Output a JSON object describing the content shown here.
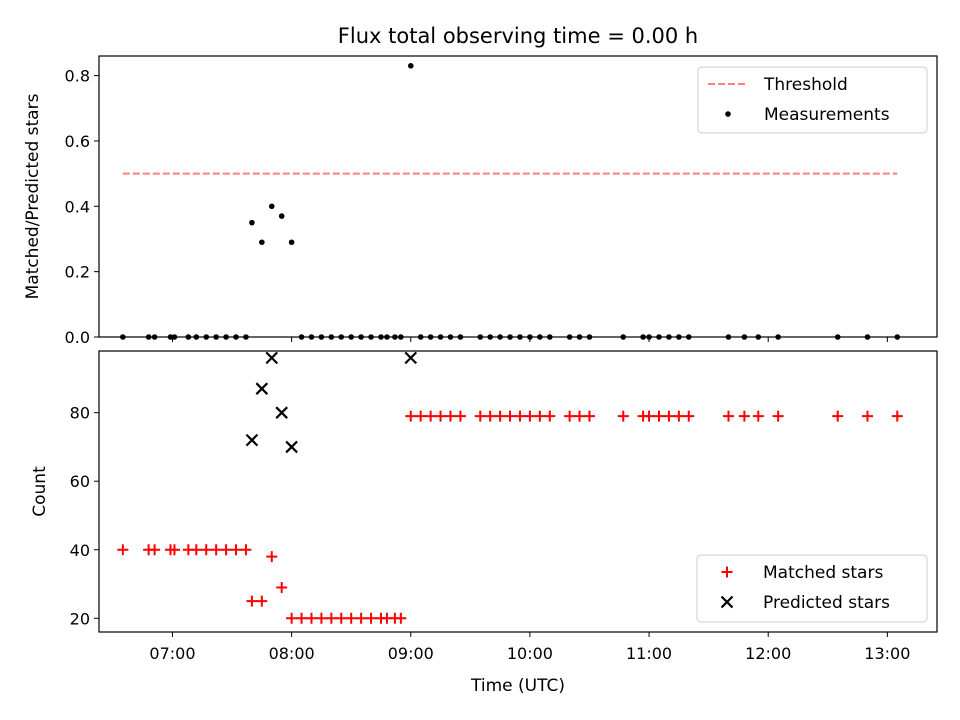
{
  "figure": {
    "title": "Flux total observing time = 0.00 h",
    "xlabel": "Time (UTC)"
  },
  "chart_data": [
    {
      "type": "scatter",
      "ylabel": "Matched/Predicted stars",
      "xlim": [
        "06:23",
        "13:25"
      ],
      "ylim": [
        0,
        0.86
      ],
      "yticks": [
        "0.0",
        "0.2",
        "0.4",
        "0.6",
        "0.8"
      ],
      "xticks": [
        "07:00",
        "08:00",
        "09:00",
        "10:00",
        "11:00",
        "12:00",
        "13:00"
      ],
      "legend_position": "top-right",
      "colors": {
        "threshold": "#ff7f7f",
        "measurements": "#000000"
      },
      "series": [
        {
          "name": "Threshold",
          "kind": "dashed-line",
          "x": [
            "06:35",
            "13:05"
          ],
          "y": [
            0.5,
            0.5
          ]
        },
        {
          "name": "Measurements",
          "kind": "points",
          "x": [
            "06:35",
            "06:48",
            "06:51",
            "06:59",
            "07:01",
            "07:08",
            "07:12",
            "07:17",
            "07:22",
            "07:27",
            "07:32",
            "07:37",
            "07:40",
            "07:45",
            "07:50",
            "07:55",
            "08:00",
            "08:05",
            "08:10",
            "08:15",
            "08:20",
            "08:25",
            "08:30",
            "08:35",
            "08:40",
            "08:45",
            "08:48",
            "08:52",
            "08:55",
            "09:00",
            "09:05",
            "09:10",
            "09:15",
            "09:20",
            "09:25",
            "09:35",
            "09:40",
            "09:45",
            "09:50",
            "09:55",
            "10:00",
            "10:05",
            "10:10",
            "10:20",
            "10:25",
            "10:30",
            "10:47",
            "10:57",
            "11:00",
            "11:05",
            "11:10",
            "11:15",
            "11:20",
            "11:40",
            "11:48",
            "11:55",
            "12:05",
            "12:35",
            "12:50",
            "13:05"
          ],
          "y": [
            0,
            0,
            0,
            0,
            0,
            0,
            0,
            0,
            0,
            0,
            0,
            0,
            0.35,
            0.29,
            0.4,
            0.37,
            0.29,
            0,
            0,
            0,
            0,
            0,
            0,
            0,
            0,
            0,
            0,
            0,
            0,
            0.83,
            0,
            0,
            0,
            0,
            0,
            0,
            0,
            0,
            0,
            0,
            0,
            0,
            0,
            0,
            0,
            0,
            0,
            0,
            0,
            0,
            0,
            0,
            0,
            0,
            0,
            0,
            0,
            0,
            0,
            0
          ]
        }
      ]
    },
    {
      "type": "scatter",
      "ylabel": "Count",
      "xlim": [
        "06:23",
        "13:25"
      ],
      "ylim": [
        16,
        98
      ],
      "yticks": [
        "20",
        "40",
        "60",
        "80"
      ],
      "xticks": [
        "07:00",
        "08:00",
        "09:00",
        "10:00",
        "11:00",
        "12:00",
        "13:00"
      ],
      "legend_position": "bottom-right",
      "colors": {
        "matched": "#ff0000",
        "predicted": "#000000"
      },
      "series": [
        {
          "name": "Matched stars",
          "marker": "plus",
          "x": [
            "06:35",
            "06:48",
            "06:51",
            "06:59",
            "07:01",
            "07:08",
            "07:12",
            "07:17",
            "07:22",
            "07:27",
            "07:32",
            "07:37",
            "07:40",
            "07:45",
            "07:50",
            "07:55",
            "08:00",
            "08:05",
            "08:10",
            "08:15",
            "08:20",
            "08:25",
            "08:30",
            "08:35",
            "08:40",
            "08:45",
            "08:48",
            "08:52",
            "08:55",
            "09:00",
            "09:05",
            "09:10",
            "09:15",
            "09:20",
            "09:25",
            "09:35",
            "09:40",
            "09:45",
            "09:50",
            "09:55",
            "10:00",
            "10:05",
            "10:10",
            "10:20",
            "10:25",
            "10:30",
            "10:47",
            "10:57",
            "11:00",
            "11:05",
            "11:10",
            "11:15",
            "11:20",
            "11:40",
            "11:48",
            "11:55",
            "12:05",
            "12:35",
            "12:50",
            "13:05"
          ],
          "y": [
            40,
            40,
            40,
            40,
            40,
            40,
            40,
            40,
            40,
            40,
            40,
            40,
            25,
            25,
            38,
            29,
            20,
            20,
            20,
            20,
            20,
            20,
            20,
            20,
            20,
            20,
            20,
            20,
            20,
            79,
            79,
            79,
            79,
            79,
            79,
            79,
            79,
            79,
            79,
            79,
            79,
            79,
            79,
            79,
            79,
            79,
            79,
            79,
            79,
            79,
            79,
            79,
            79,
            79,
            79,
            79,
            79,
            79,
            79,
            79
          ]
        },
        {
          "name": "Predicted stars",
          "marker": "x",
          "x": [
            "07:40",
            "07:45",
            "07:50",
            "07:55",
            "08:00",
            "09:00"
          ],
          "y": [
            72,
            87,
            96,
            80,
            70,
            96
          ]
        }
      ]
    }
  ]
}
